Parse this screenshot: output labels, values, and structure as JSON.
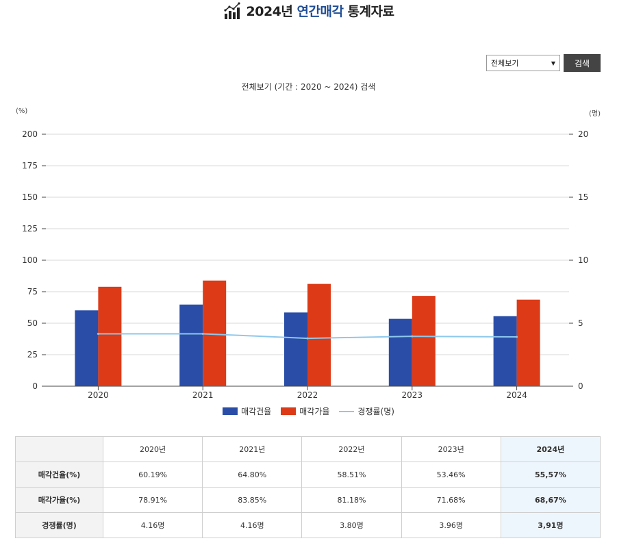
{
  "page_title": {
    "year_part": "2024년",
    "accent_part": "연간매각",
    "rest_part": "통계자료"
  },
  "controls": {
    "select_value": "전체보기",
    "search_label": "검색"
  },
  "chart_subtitle": "전체보기 (기간 : 2020 ~ 2024) 검색",
  "chart_data": {
    "type": "bar",
    "categories": [
      "2020",
      "2021",
      "2022",
      "2023",
      "2024"
    ],
    "series": [
      {
        "name": "매각건율",
        "type": "bar",
        "axis": "left",
        "color": "#2a4ea8",
        "values": [
          60.19,
          64.8,
          58.51,
          53.46,
          55.57
        ]
      },
      {
        "name": "매각가율",
        "type": "bar",
        "axis": "left",
        "color": "#dd3a17",
        "values": [
          78.91,
          83.85,
          81.18,
          71.68,
          68.67
        ]
      },
      {
        "name": "경쟁률(명)",
        "type": "line",
        "axis": "right",
        "color": "#8ec8ec",
        "values": [
          4.16,
          4.16,
          3.8,
          3.96,
          3.91
        ]
      }
    ],
    "y_left": {
      "unit": "(%)",
      "ylim": [
        0,
        200
      ],
      "ticks": [
        "0",
        "25",
        "50",
        "75",
        "100",
        "125",
        "150",
        "175",
        "200"
      ]
    },
    "y_right": {
      "unit": "(명)",
      "ylim": [
        0,
        20
      ],
      "ticks": [
        "0",
        "5",
        "10",
        "15",
        "20"
      ]
    },
    "grid": true,
    "legend_position": "bottom-center"
  },
  "table": {
    "headers": [
      "",
      "2020년",
      "2021년",
      "2022년",
      "2023년",
      "2024년"
    ],
    "rows": [
      {
        "label": "매각건율(%)",
        "cells": [
          "60.19%",
          "64.80%",
          "58.51%",
          "53.46%",
          "55,57%"
        ]
      },
      {
        "label": "매각가율(%)",
        "cells": [
          "78.91%",
          "83.85%",
          "81.18%",
          "71.68%",
          "68,67%"
        ]
      },
      {
        "label": "경쟁률(명)",
        "cells": [
          "4.16명",
          "4.16명",
          "3.80명",
          "3.96명",
          "3,91명"
        ]
      }
    ]
  }
}
